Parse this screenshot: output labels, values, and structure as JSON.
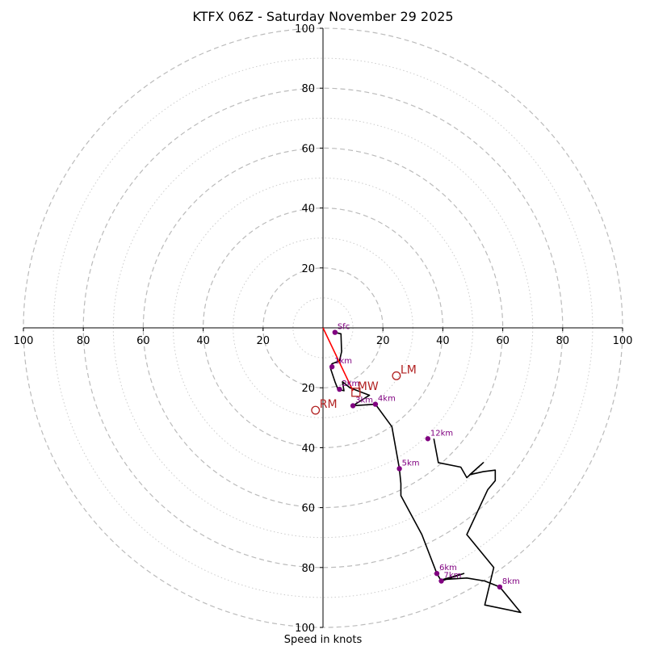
{
  "chart_data": {
    "type": "hodograph",
    "title": "KTFX 06Z - Saturday November 29 2025",
    "xlabel": "Speed in knots",
    "range": [
      -100,
      100
    ],
    "major_rings": [
      20,
      40,
      60,
      80,
      100
    ],
    "minor_rings": [
      10,
      30,
      50,
      70,
      90
    ],
    "x_tick_labels": [
      {
        "value": -100,
        "label": "100"
      },
      {
        "value": -80,
        "label": "80"
      },
      {
        "value": -60,
        "label": "60"
      },
      {
        "value": -40,
        "label": "40"
      },
      {
        "value": -20,
        "label": "20"
      },
      {
        "value": 20,
        "label": "20"
      },
      {
        "value": 40,
        "label": "40"
      },
      {
        "value": 60,
        "label": "60"
      },
      {
        "value": 80,
        "label": "80"
      },
      {
        "value": 100,
        "label": "100"
      }
    ],
    "y_tick_labels": [
      {
        "value": 100,
        "label": "100"
      },
      {
        "value": 80,
        "label": "80"
      },
      {
        "value": 60,
        "label": "60"
      },
      {
        "value": 40,
        "label": "40"
      },
      {
        "value": 20,
        "label": "20"
      },
      {
        "value": -20,
        "label": "20"
      },
      {
        "value": -40,
        "label": "40"
      },
      {
        "value": -60,
        "label": "60"
      },
      {
        "value": -80,
        "label": "80"
      },
      {
        "value": -100,
        "label": "100"
      }
    ],
    "colors": {
      "trace": "#000000",
      "points": "#800080",
      "motion": "#b22222",
      "shear": "#ff0000",
      "major_grid": "#bbbbbb",
      "minor_grid": "#cccccc"
    },
    "trace": [
      [
        4,
        -1.5
      ],
      [
        6,
        -2
      ],
      [
        6.2,
        -8
      ],
      [
        5.5,
        -11
      ],
      [
        3,
        -12
      ],
      [
        2.5,
        -13.5
      ],
      [
        4,
        -18
      ],
      [
        5,
        -20.5
      ],
      [
        7,
        -21
      ],
      [
        6.5,
        -18
      ],
      [
        9,
        -20
      ],
      [
        15.5,
        -22.5
      ],
      [
        10,
        -26
      ],
      [
        17.5,
        -25.5
      ],
      [
        23,
        -33
      ],
      [
        25.5,
        -47
      ],
      [
        26,
        -52
      ],
      [
        26,
        -56
      ],
      [
        33,
        -69
      ],
      [
        38,
        -82
      ],
      [
        39.5,
        -84.5
      ],
      [
        47,
        -82
      ],
      [
        40,
        -84
      ],
      [
        48,
        -83.5
      ],
      [
        54,
        -84.5
      ],
      [
        59,
        -86.5
      ],
      [
        66,
        -95
      ],
      [
        54,
        -92.5
      ],
      [
        57,
        -80
      ],
      [
        48,
        -69
      ],
      [
        55,
        -54
      ],
      [
        57.5,
        -51
      ],
      [
        57.5,
        -47.5
      ],
      [
        53.5,
        -48
      ],
      [
        49,
        -49
      ],
      [
        53.5,
        -45
      ],
      [
        48,
        -50
      ],
      [
        46,
        -46.5
      ],
      [
        38.5,
        -45
      ],
      [
        37,
        -37
      ]
    ],
    "height_markers": [
      {
        "label": "Sfc",
        "u": 4,
        "v": -1.5
      },
      {
        "label": "1km",
        "u": 3,
        "v": -13
      },
      {
        "label": "2km",
        "u": 5.5,
        "v": -20.5
      },
      {
        "label": "3km",
        "u": 10,
        "v": -26
      },
      {
        "label": "4km",
        "u": 17.5,
        "v": -25.5
      },
      {
        "label": "5km",
        "u": 25.5,
        "v": -47
      },
      {
        "label": "6km",
        "u": 38,
        "v": -82
      },
      {
        "label": "7km",
        "u": 39.5,
        "v": -84.5
      },
      {
        "label": "8km",
        "u": 59,
        "v": -86.5
      },
      {
        "label": "12km",
        "u": 35,
        "v": -37
      }
    ],
    "storm_motion": [
      {
        "label": "RM",
        "u": -2.5,
        "v": -27.5
      },
      {
        "label": "LM",
        "u": 24.5,
        "v": -16
      }
    ],
    "mean_wind": {
      "label": "MW",
      "u": 11,
      "v": -21.5
    },
    "shear_vector": {
      "from": [
        0,
        0
      ],
      "to": [
        10,
        -21
      ]
    }
  }
}
